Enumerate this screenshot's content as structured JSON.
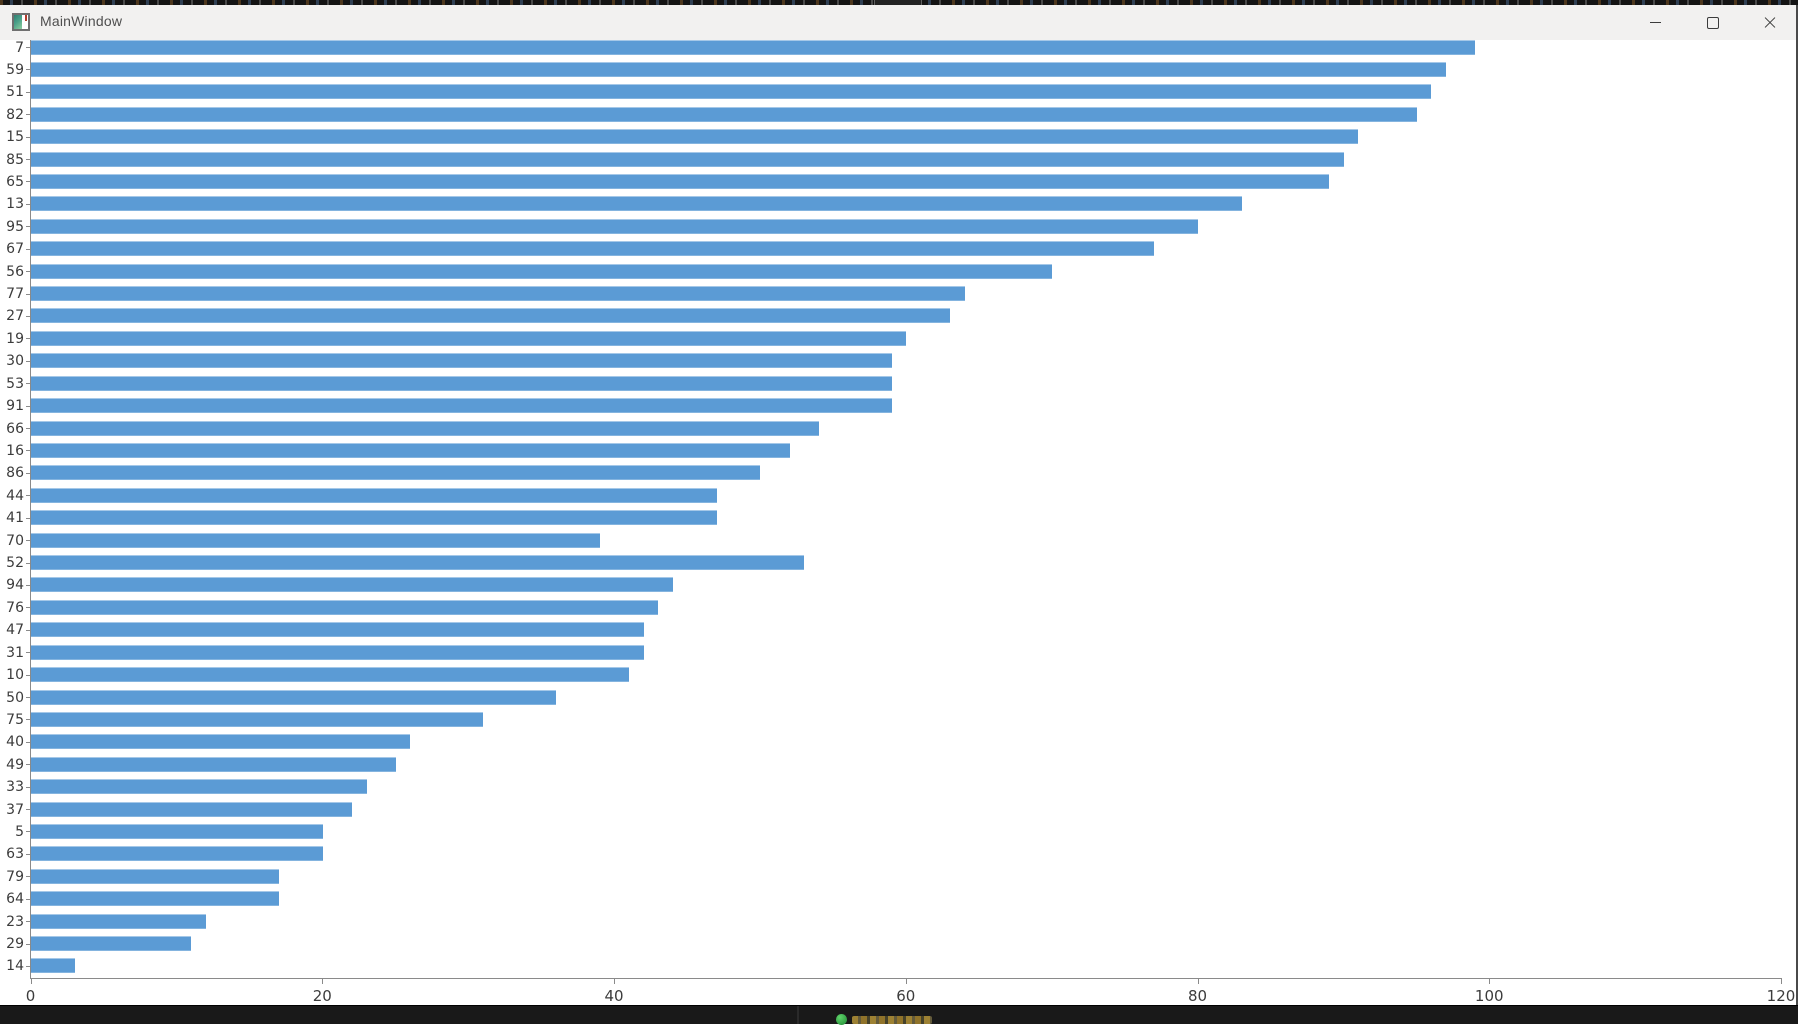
{
  "window": {
    "title": "MainWindow",
    "icon": "qt-window-icon",
    "controls": [
      {
        "name": "minimize"
      },
      {
        "name": "maximize"
      },
      {
        "name": "close"
      }
    ]
  },
  "overlay": {
    "top_strip": "background-window-edge",
    "drag_handle": "screen-capture-drag-handle",
    "taskbar": {
      "status_dot_color": "#2E9E44"
    }
  },
  "chart_data": {
    "type": "bar",
    "orientation": "horizontal",
    "title": "",
    "xlabel": "",
    "ylabel": "",
    "categories": [
      "7",
      "59",
      "51",
      "82",
      "15",
      "85",
      "65",
      "13",
      "95",
      "67",
      "56",
      "77",
      "27",
      "19",
      "30",
      "53",
      "91",
      "66",
      "16",
      "86",
      "44",
      "41",
      "70",
      "52",
      "94",
      "76",
      "47",
      "31",
      "10",
      "50",
      "75",
      "40",
      "49",
      "33",
      "37",
      "5",
      "63",
      "79",
      "64",
      "23",
      "29",
      "14"
    ],
    "values": [
      99,
      97,
      96,
      95,
      91,
      90,
      89,
      83,
      80,
      77,
      70,
      64,
      63,
      60,
      59,
      59,
      59,
      54,
      52,
      50,
      47,
      47,
      39,
      53,
      44,
      43,
      42,
      42,
      41,
      36,
      31,
      26,
      25,
      23,
      22,
      20,
      20,
      17,
      17,
      12,
      11,
      3
    ],
    "x_ticks": [
      "0",
      "20",
      "40",
      "60",
      "80",
      "100",
      "120"
    ],
    "xlim": [
      0,
      120
    ],
    "bar_color": "#5B9BD5",
    "grid": false,
    "legend": null
  },
  "colors": {
    "bar": "#5B9BD5",
    "titlebar_bg": "#F2F1F0",
    "axis": "#8A8A8A",
    "tick_label": "#3C3C3C",
    "taskbar_bg": "#191919"
  }
}
